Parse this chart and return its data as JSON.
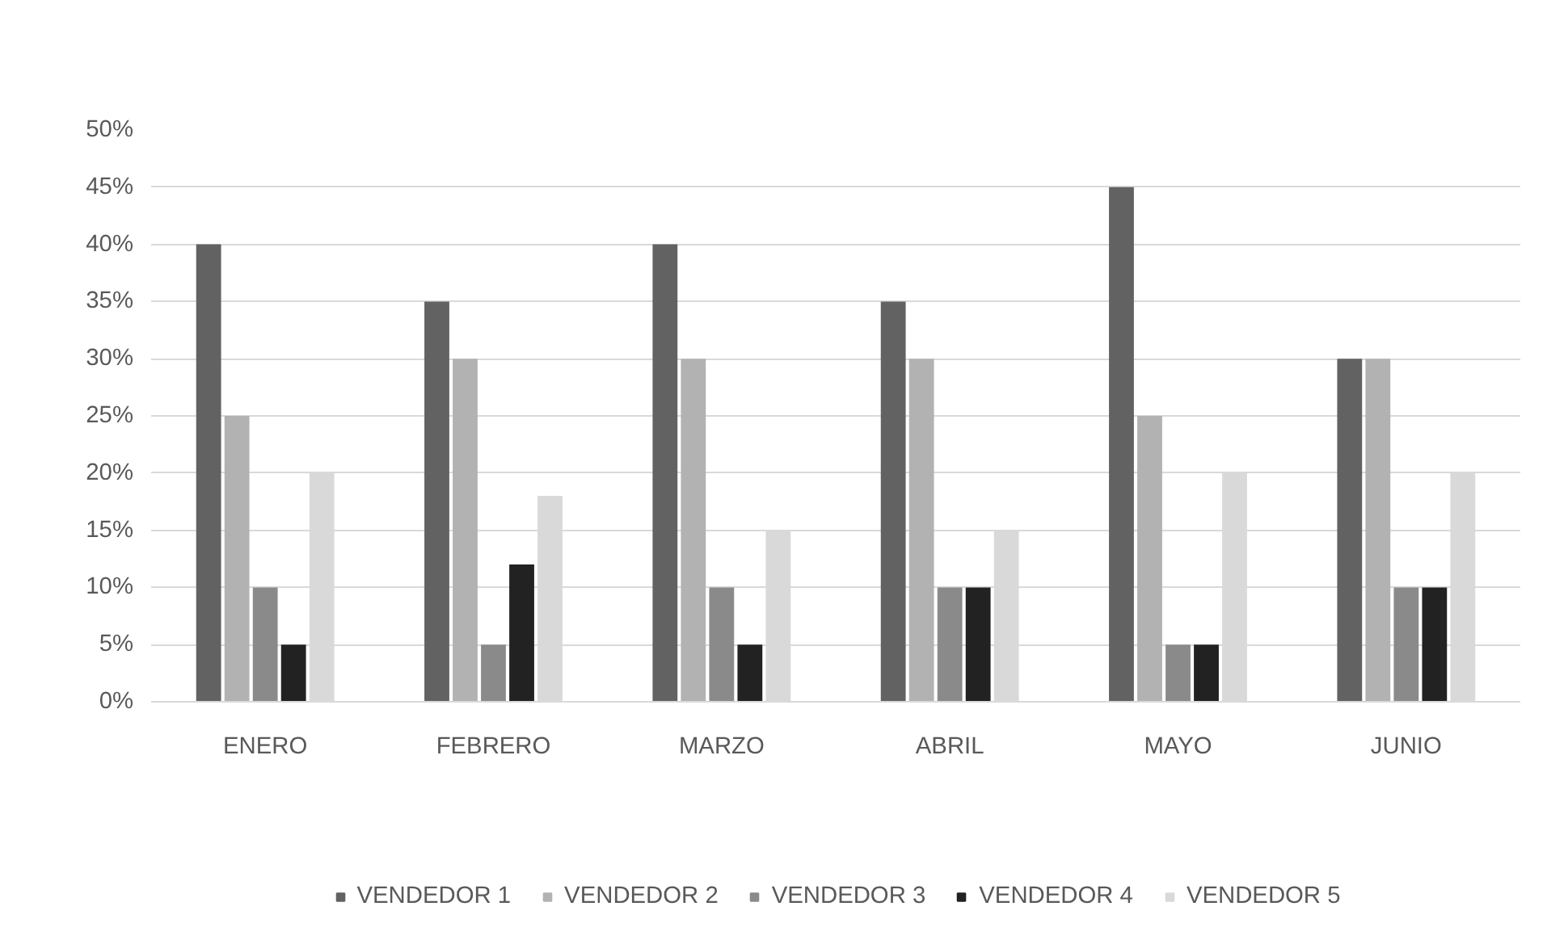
{
  "chart_data": {
    "type": "bar",
    "categories": [
      "ENERO",
      "FEBRERO",
      "MARZO",
      "ABRIL",
      "MAYO",
      "JUNIO"
    ],
    "series": [
      {
        "name": "VENDEDOR 1",
        "color": "#626262",
        "values": [
          40,
          35,
          40,
          35,
          45,
          30
        ]
      },
      {
        "name": "VENDEDOR 2",
        "color": "#b2b2b2",
        "values": [
          25,
          30,
          30,
          30,
          25,
          30
        ]
      },
      {
        "name": "VENDEDOR 3",
        "color": "#8a8a8a",
        "values": [
          10,
          5,
          10,
          10,
          5,
          10
        ]
      },
      {
        "name": "VENDEDOR 4",
        "color": "#222222",
        "values": [
          5,
          12,
          5,
          10,
          5,
          10
        ]
      },
      {
        "name": "VENDEDOR 5",
        "color": "#d9d9d9",
        "values": [
          20,
          18,
          15,
          15,
          20,
          20
        ]
      }
    ],
    "ylim": [
      0,
      50
    ],
    "yticks": [
      {
        "value": 0,
        "label": "0%"
      },
      {
        "value": 5,
        "label": "5%"
      },
      {
        "value": 10,
        "label": "10%"
      },
      {
        "value": 15,
        "label": "15%"
      },
      {
        "value": 20,
        "label": "20%"
      },
      {
        "value": 25,
        "label": "25%"
      },
      {
        "value": 30,
        "label": "30%"
      },
      {
        "value": 35,
        "label": "35%"
      },
      {
        "value": 40,
        "label": "40%"
      },
      {
        "value": 45,
        "label": "45%"
      },
      {
        "value": 50,
        "label": "50%"
      }
    ],
    "grid": "y",
    "legend": "bottom"
  }
}
